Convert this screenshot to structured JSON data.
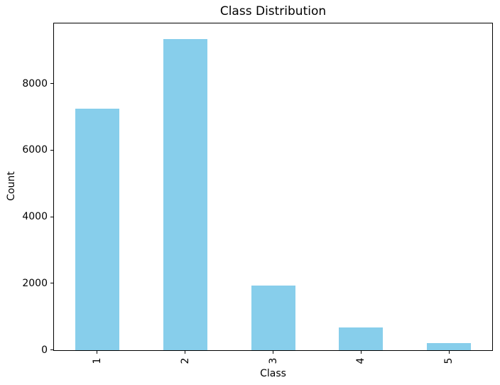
{
  "chart_data": {
    "type": "bar",
    "title": "Class Distribution",
    "xlabel": "Class",
    "ylabel": "Count",
    "categories": [
      "1",
      "2",
      "3",
      "4",
      "5"
    ],
    "values": [
      7250,
      9350,
      1950,
      690,
      215
    ],
    "yticks": [
      0,
      2000,
      4000,
      6000,
      8000
    ],
    "ylim": [
      0,
      9820
    ],
    "bar_color": "#87CEEB",
    "grid": false,
    "legend": null,
    "x_tick_rotation": 90,
    "spine_color": "#000000",
    "background_color": "#ffffff"
  }
}
